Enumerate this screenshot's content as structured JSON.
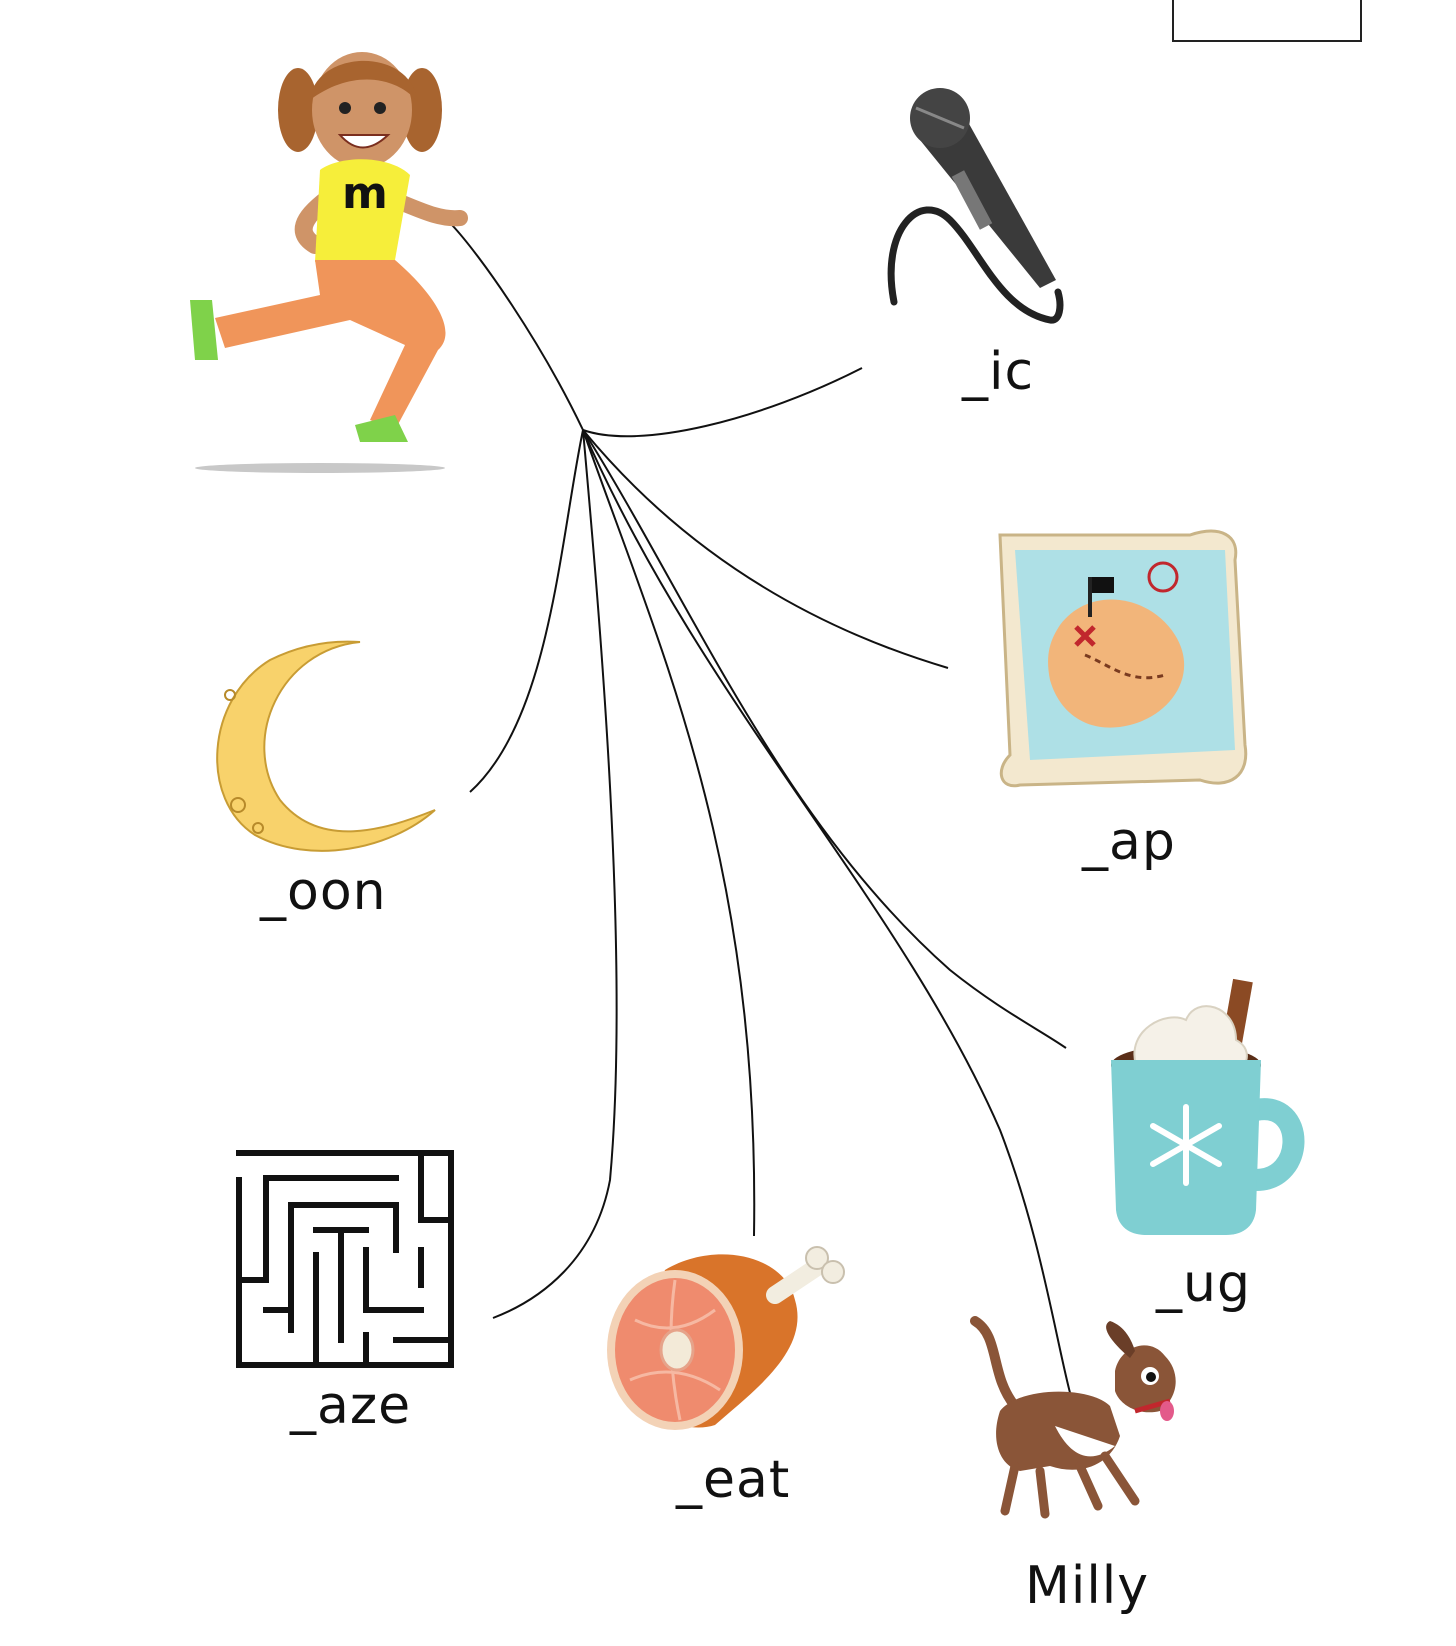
{
  "worksheet": {
    "shirt_letter": "m",
    "words": {
      "ic": "_ic",
      "ap": "_ap",
      "oon": "_oon",
      "ug": "_ug",
      "aze": "_aze",
      "eat": "_eat"
    },
    "dog_name": "Milly"
  },
  "colors": {
    "shirt": "#f6ee3a",
    "pants": "#f0955a",
    "shoes": "#7fd24a",
    "hair": "#a8642f",
    "skin": "#cf9468",
    "moon": "#f8d26b",
    "mug": "#7fcfd2",
    "map_land": "#f2b57a",
    "map_sea": "#aee0e6",
    "meat": "#ef8b6e",
    "meat_skin": "#d9742a",
    "dog": "#8a5538",
    "line": "#111111"
  }
}
